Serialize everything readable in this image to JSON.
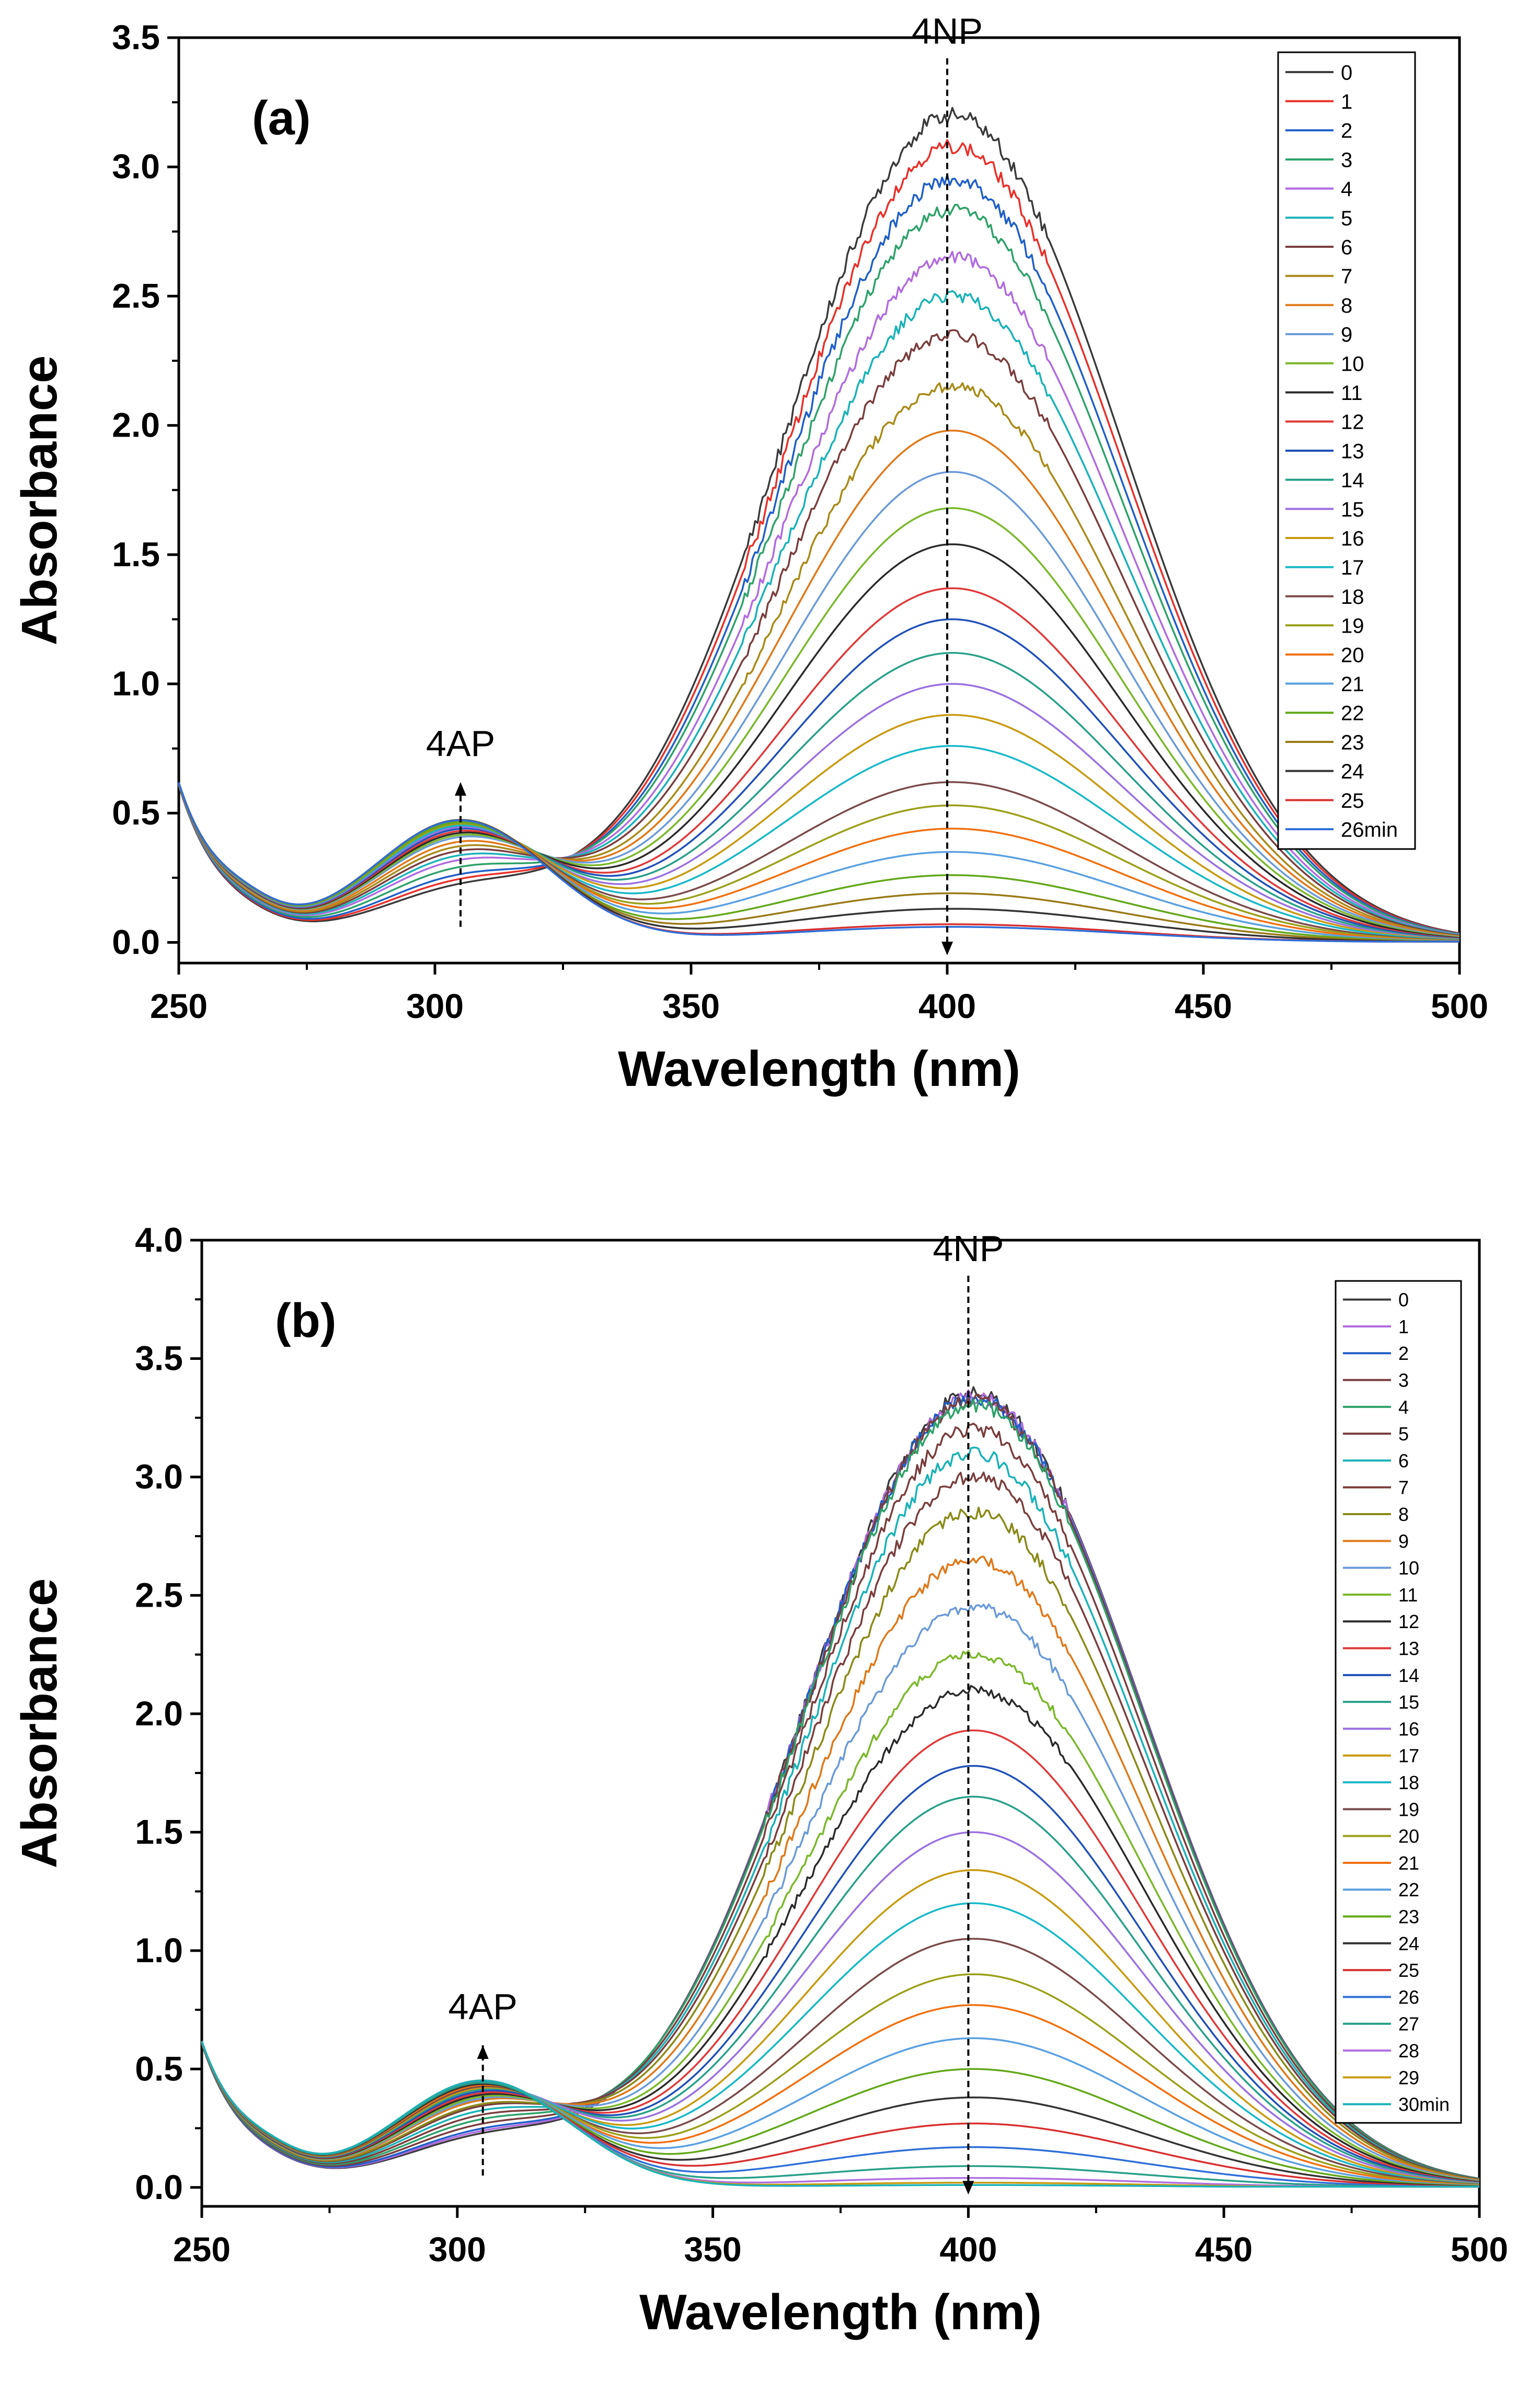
{
  "chart_data": [
    {
      "type": "line",
      "panel_label": "(a)",
      "xlabel": "Wavelength (nm)",
      "ylabel": "Absorbance",
      "xlim": [
        250,
        500
      ],
      "ylim": [
        -0.08,
        3.5
      ],
      "xticks": [
        250,
        300,
        350,
        400,
        450,
        500
      ],
      "xtick_labels": [
        "250",
        "300",
        "350",
        "400",
        "450",
        "500"
      ],
      "yticks": [
        0.0,
        0.5,
        1.0,
        1.5,
        2.0,
        2.5,
        3.0,
        3.5
      ],
      "ytick_labels": [
        "0.0",
        "0.5",
        "1.0",
        "1.5",
        "2.0",
        "2.5",
        "3.0",
        "3.5"
      ],
      "legend_position": "top-right",
      "legend_labels": [
        "0",
        "1",
        "2",
        "3",
        "4",
        "5",
        "6",
        "7",
        "8",
        "9",
        "10",
        "11",
        "12",
        "13",
        "14",
        "15",
        "16",
        "17",
        "18",
        "19",
        "20",
        "21",
        "22",
        "23",
        "24",
        "25",
        "26min"
      ],
      "colors": [
        "#3a3a3a",
        "#e8302a",
        "#1f5fc8",
        "#2ea26a",
        "#b06be0",
        "#19b2b8",
        "#7a3d3d",
        "#a88a18",
        "#e07818",
        "#6a9ad8",
        "#7ab82a",
        "#2a2a2a",
        "#e03838",
        "#2050b8",
        "#28a088",
        "#9a70e0",
        "#c89a10",
        "#18b8c8",
        "#7a4a4a",
        "#9aa018",
        "#f07010",
        "#5aa0e0",
        "#62a81a",
        "#9a7a18",
        "#333333",
        "#d83030",
        "#2f6fd8"
      ],
      "peak_abs_400": [
        3.2,
        3.08,
        2.95,
        2.83,
        2.65,
        2.5,
        2.35,
        2.15,
        1.98,
        1.82,
        1.68,
        1.54,
        1.37,
        1.25,
        1.12,
        1.0,
        0.88,
        0.76,
        0.62,
        0.53,
        0.44,
        0.35,
        0.26,
        0.19,
        0.13,
        0.07,
        0.06
      ],
      "peak_abs_300": [
        0.18,
        0.2,
        0.22,
        0.25,
        0.28,
        0.3,
        0.32,
        0.34,
        0.36,
        0.38,
        0.39,
        0.4,
        0.41,
        0.42,
        0.43,
        0.43,
        0.44,
        0.44,
        0.45,
        0.45,
        0.46,
        0.46,
        0.46,
        0.47,
        0.47,
        0.47,
        0.47
      ],
      "annotations": [
        {
          "text": "4NP",
          "x": 400,
          "arrow_from": 3.42,
          "arrow_to": -0.05,
          "direction": "down"
        },
        {
          "text": "4AP",
          "x": 305,
          "arrow_from": 0.06,
          "arrow_to": 0.62,
          "direction": "up"
        }
      ]
    },
    {
      "type": "line",
      "panel_label": "(b)",
      "xlabel": "Wavelength (nm)",
      "ylabel": "Absorbance",
      "xlim": [
        250,
        500
      ],
      "ylim": [
        -0.08,
        4.0
      ],
      "xticks": [
        250,
        300,
        350,
        400,
        450,
        500
      ],
      "xtick_labels": [
        "250",
        "300",
        "350",
        "400",
        "450",
        "500"
      ],
      "yticks": [
        0.0,
        0.5,
        1.0,
        1.5,
        2.0,
        2.5,
        3.0,
        3.5,
        4.0
      ],
      "ytick_labels": [
        "0.0",
        "0.5",
        "1.0",
        "1.5",
        "2.0",
        "2.5",
        "3.0",
        "3.5",
        "4.0"
      ],
      "legend_position": "top-right",
      "legend_labels": [
        "0",
        "1",
        "2",
        "3",
        "4",
        "5",
        "6",
        "7",
        "8",
        "9",
        "10",
        "11",
        "12",
        "13",
        "14",
        "15",
        "16",
        "17",
        "18",
        "19",
        "20",
        "21",
        "22",
        "23",
        "24",
        "25",
        "26",
        "27",
        "28",
        "29",
        "30min"
      ],
      "colors": [
        "#3a3a3a",
        "#b06be0",
        "#1f5fc8",
        "#7a3d3d",
        "#2ea26a",
        "#7a3d3d",
        "#19b2b8",
        "#7a3d3d",
        "#8a8a18",
        "#e07818",
        "#6a9ad8",
        "#7ab82a",
        "#2a2a2a",
        "#e03838",
        "#2050b8",
        "#28a088",
        "#9a70e0",
        "#c89a10",
        "#18b8c8",
        "#7a4a4a",
        "#9aa018",
        "#f07010",
        "#5aa0e0",
        "#62a81a",
        "#333333",
        "#d83030",
        "#2f6fd8",
        "#28a088",
        "#b070e0",
        "#c89a10",
        "#19b2b8"
      ],
      "peak_abs_400": [
        3.35,
        3.34,
        3.33,
        3.32,
        3.3,
        3.2,
        3.1,
        3.0,
        2.85,
        2.65,
        2.45,
        2.25,
        2.1,
        1.93,
        1.78,
        1.65,
        1.5,
        1.34,
        1.2,
        1.05,
        0.9,
        0.77,
        0.63,
        0.5,
        0.38,
        0.27,
        0.17,
        0.09,
        0.04,
        0.02,
        0.01
      ],
      "peak_abs_300": [
        0.18,
        0.19,
        0.2,
        0.22,
        0.24,
        0.26,
        0.28,
        0.3,
        0.31,
        0.33,
        0.34,
        0.35,
        0.36,
        0.37,
        0.38,
        0.39,
        0.4,
        0.4,
        0.41,
        0.41,
        0.42,
        0.42,
        0.43,
        0.43,
        0.43,
        0.44,
        0.44,
        0.44,
        0.45,
        0.45,
        0.45
      ],
      "annotations": [
        {
          "text": "4NP",
          "x": 400,
          "arrow_from": 3.85,
          "arrow_to": -0.03,
          "direction": "down"
        },
        {
          "text": "4AP",
          "x": 305,
          "arrow_from": 0.05,
          "arrow_to": 0.6,
          "direction": "up"
        }
      ]
    }
  ]
}
